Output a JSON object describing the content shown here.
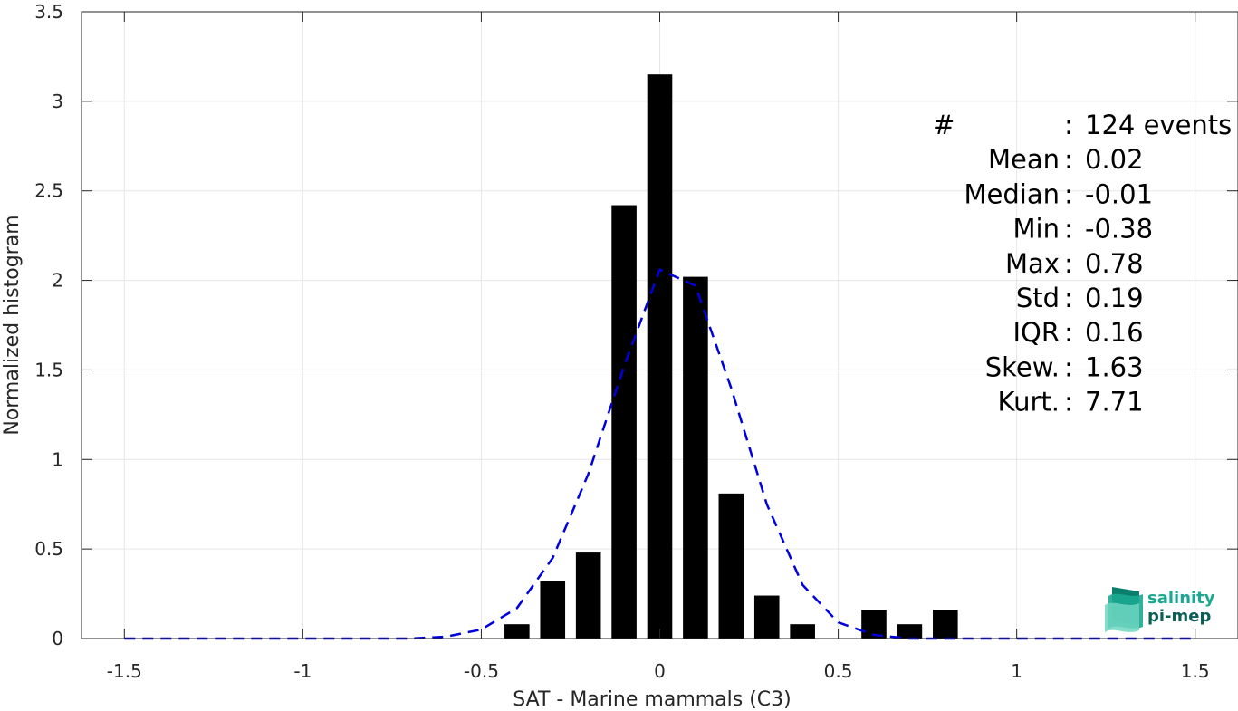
{
  "chart_data": {
    "type": "bar",
    "xlabel": "SAT - Marine mammals (C3)",
    "ylabel": "Normalized histogram",
    "xlim": [
      -1.62,
      1.62
    ],
    "ylim": [
      0,
      3.5
    ],
    "xticks": [
      -1.5,
      -1,
      -0.5,
      0,
      0.5,
      1,
      1.5
    ],
    "xtick_labels": [
      "-1.5",
      "-1",
      "-0.5",
      "0",
      "0.5",
      "1",
      "1.5"
    ],
    "yticks": [
      0,
      0.5,
      1,
      1.5,
      2,
      2.5,
      3,
      3.5
    ],
    "ytick_labels": [
      "0",
      "0.5",
      "1",
      "1.5",
      "2",
      "2.5",
      "3",
      "3.5"
    ],
    "grid": true,
    "bar_width": 0.07,
    "bar_color": "#000000",
    "bars": {
      "x": [
        -0.4,
        -0.3,
        -0.2,
        -0.1,
        0.0,
        0.1,
        0.2,
        0.3,
        0.4,
        0.5,
        0.6,
        0.7,
        0.8
      ],
      "values": [
        0.08,
        0.32,
        0.48,
        2.42,
        3.15,
        2.02,
        0.81,
        0.24,
        0.08,
        0.0,
        0.16,
        0.08,
        0.16
      ]
    },
    "curve": {
      "style": "dashed",
      "color": "#0000dd",
      "x": [
        -1.5,
        -1.4,
        -1.3,
        -1.2,
        -1.1,
        -1.0,
        -0.9,
        -0.8,
        -0.7,
        -0.6,
        -0.5,
        -0.4,
        -0.3,
        -0.2,
        -0.1,
        0.0,
        0.1,
        0.2,
        0.3,
        0.4,
        0.5,
        0.6,
        0.7,
        0.8,
        0.9,
        1.0,
        1.1,
        1.2,
        1.3,
        1.4,
        1.5
      ],
      "y": [
        0,
        0,
        0,
        0,
        0,
        0,
        0,
        0,
        0,
        0.01,
        0.05,
        0.17,
        0.45,
        0.92,
        1.52,
        2.06,
        1.97,
        1.4,
        0.75,
        0.3,
        0.09,
        0.02,
        0,
        0,
        0,
        0,
        0,
        0,
        0,
        0,
        0
      ]
    },
    "annotations": [
      {
        "label": "#",
        "sep": ":",
        "value": "124 events"
      },
      {
        "label": "Mean",
        "sep": ":",
        "value": "0.02"
      },
      {
        "label": "Median",
        "sep": ":",
        "value": "-0.01"
      },
      {
        "label": "Min",
        "sep": ":",
        "value": "-0.38"
      },
      {
        "label": "Max",
        "sep": ":",
        "value": "0.78"
      },
      {
        "label": "Std",
        "sep": ":",
        "value": "0.19"
      },
      {
        "label": "IQR",
        "sep": ":",
        "value": "0.16"
      },
      {
        "label": "Skew.",
        "sep": ":",
        "value": "1.63"
      },
      {
        "label": "Kurt.",
        "sep": ":",
        "value": "7.71"
      }
    ]
  },
  "logo": {
    "line1": "salinity",
    "line2": "pi-mep",
    "color1": "#1aa890",
    "color2": "#0b5f55"
  }
}
